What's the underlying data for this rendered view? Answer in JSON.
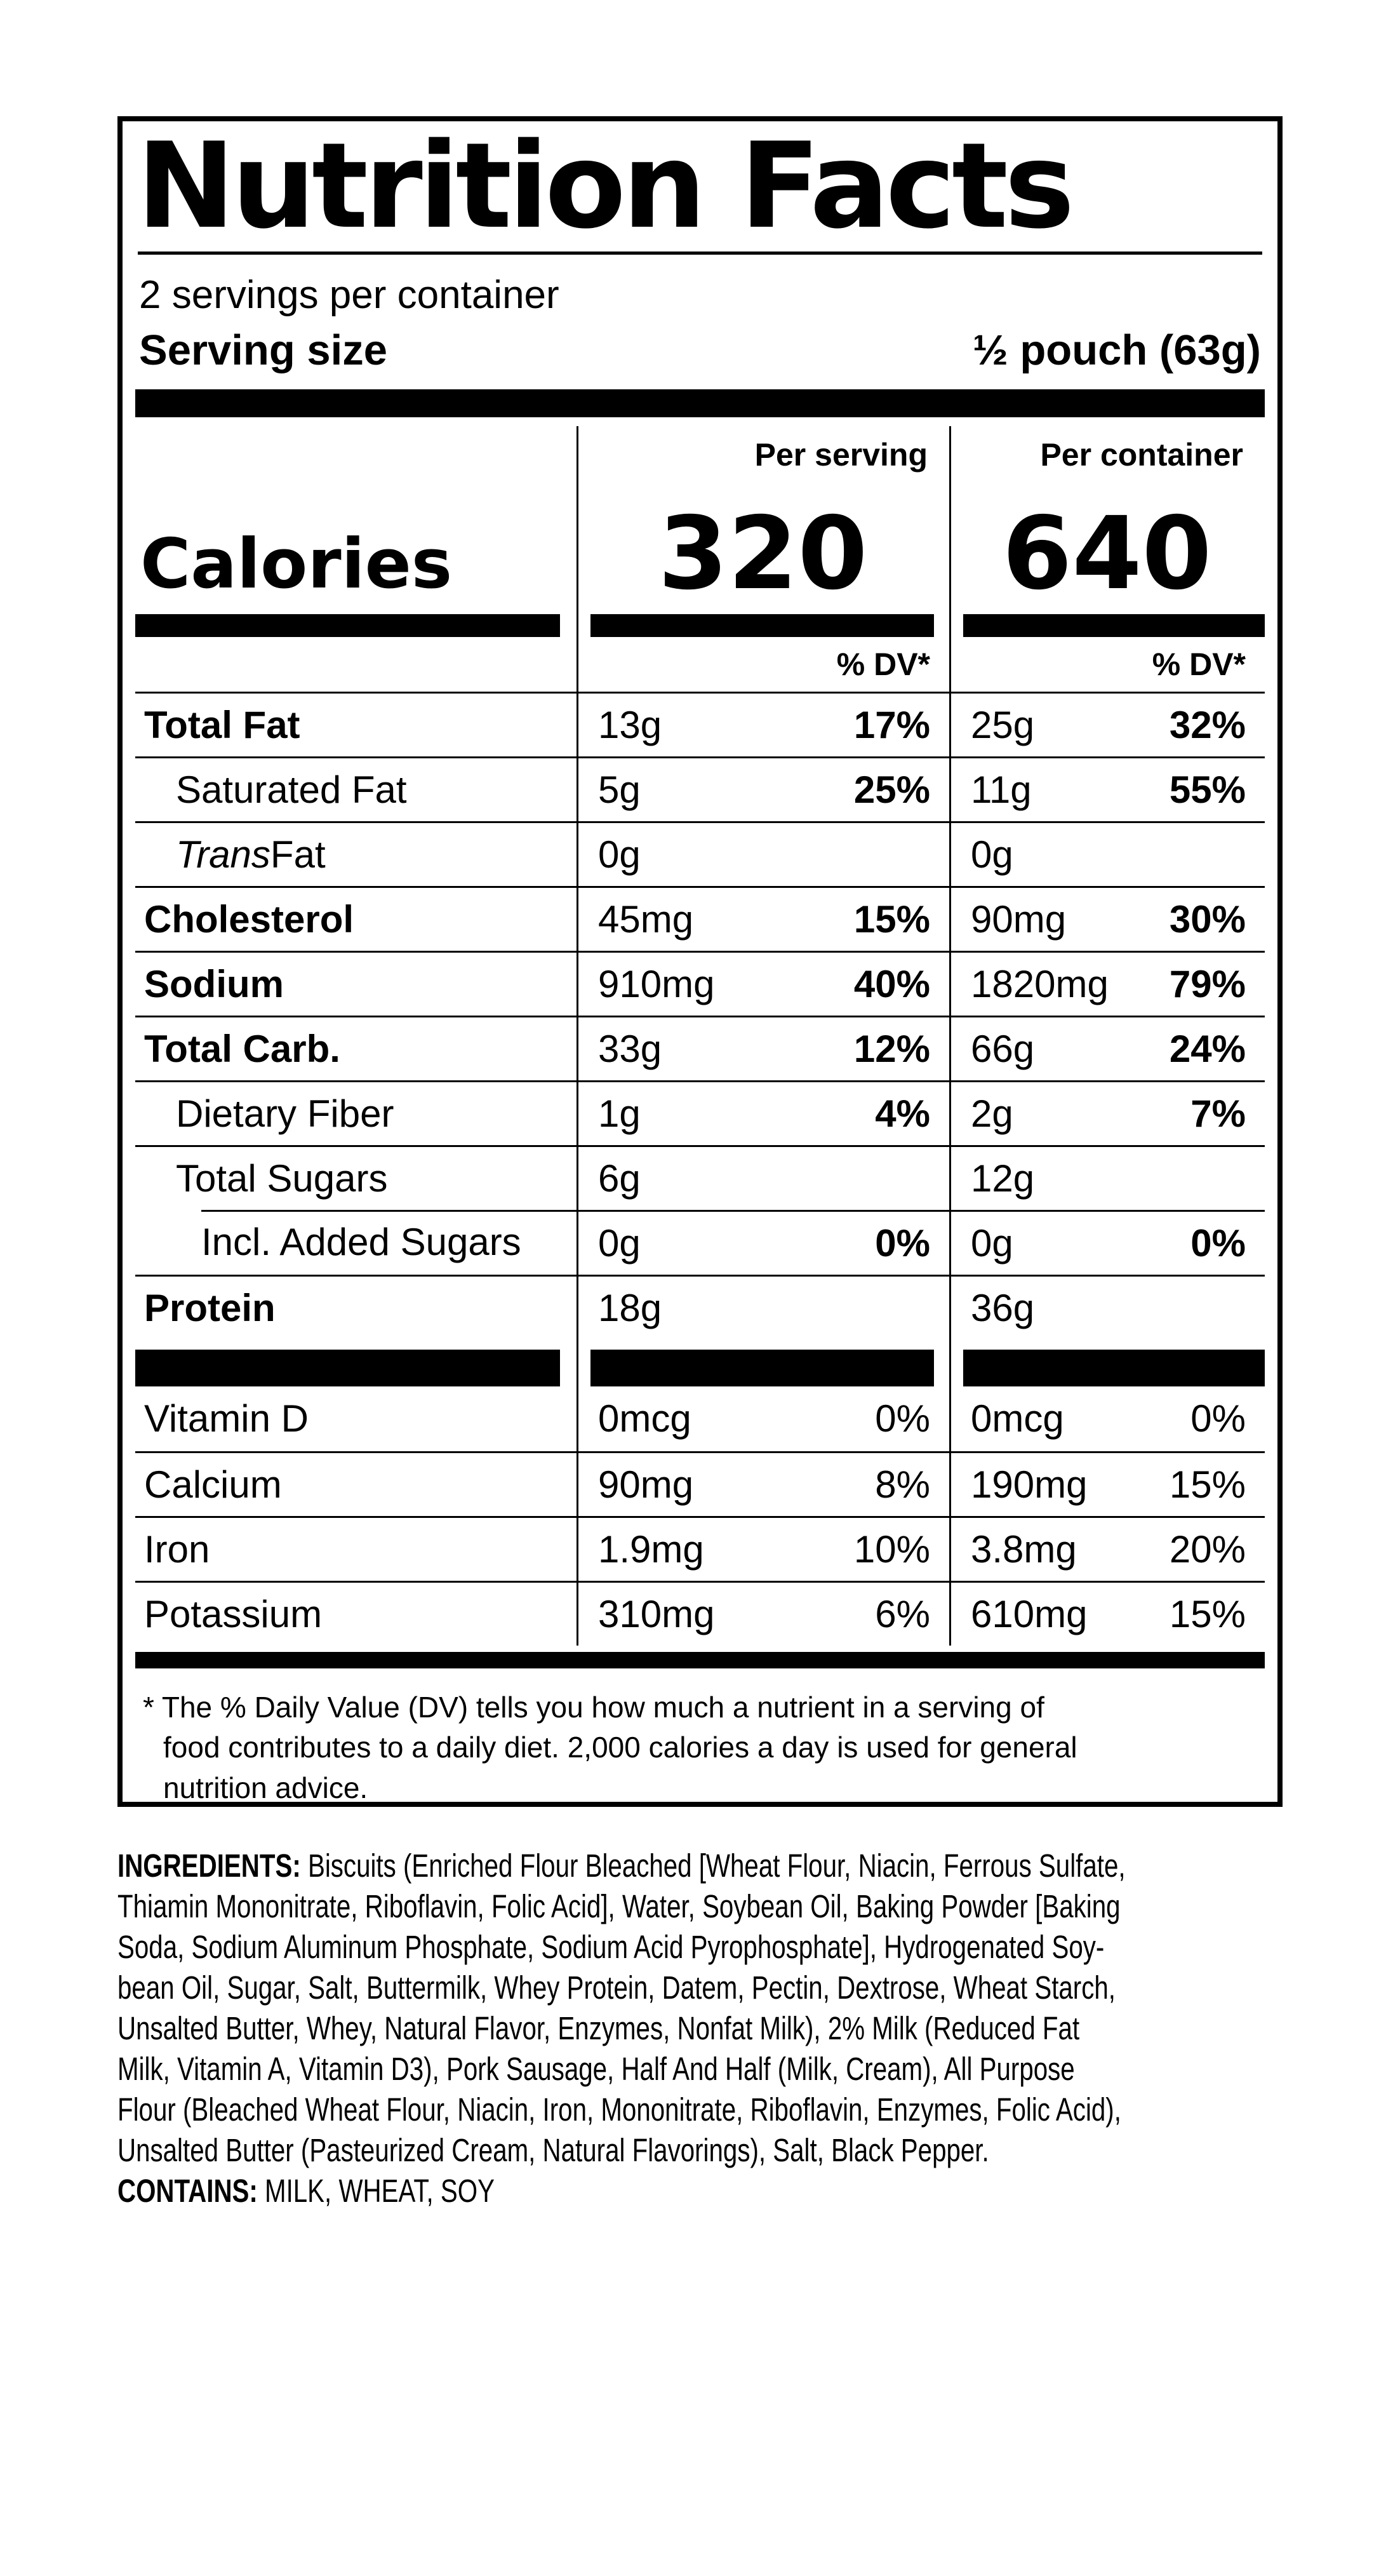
{
  "colors": {
    "ink": "#000000",
    "bg": "#ffffff"
  },
  "panel": {
    "title": "Nutrition Facts",
    "servings_per_container": "2 servings per container",
    "serving_size_label": "Serving size",
    "serving_size_value": "½ pouch (63g)",
    "columns": [
      "Per serving",
      "Per container"
    ],
    "calories": {
      "label": "Calories",
      "per_serving": "320",
      "per_container": "640"
    },
    "dv_header": "% DV*",
    "rows": [
      {
        "label": "Total Fat",
        "ps_amt": "13g",
        "ps_dv": "17%",
        "pc_amt": "25g",
        "pc_dv": "32%"
      },
      {
        "label": "Saturated Fat",
        "ps_amt": "5g",
        "ps_dv": "25%",
        "pc_amt": "11g",
        "pc_dv": "55%"
      },
      {
        "label_italic": "Trans",
        "label_rest": " Fat",
        "ps_amt": "0g",
        "pc_amt": "0g"
      },
      {
        "label": "Cholesterol",
        "ps_amt": "45mg",
        "ps_dv": "15%",
        "pc_amt": "90mg",
        "pc_dv": "30%"
      },
      {
        "label": "Sodium",
        "ps_amt": "910mg",
        "ps_dv": "40%",
        "pc_amt": "1820mg",
        "pc_dv": "79%"
      },
      {
        "label": "Total Carb.",
        "ps_amt": "33g",
        "ps_dv": "12%",
        "pc_amt": "66g",
        "pc_dv": "24%"
      },
      {
        "label": "Dietary Fiber",
        "ps_amt": "1g",
        "ps_dv": "4%",
        "pc_amt": "2g",
        "pc_dv": "7%"
      },
      {
        "label": "Total Sugars",
        "ps_amt": "6g",
        "pc_amt": "12g"
      },
      {
        "label": "Incl. Added Sugars",
        "ps_amt": "0g",
        "ps_dv": "0%",
        "pc_amt": "0g",
        "pc_dv": "0%"
      },
      {
        "label": "Protein",
        "ps_amt": "18g",
        "pc_amt": "36g"
      }
    ],
    "micros": [
      {
        "label": "Vitamin D",
        "ps_amt": "0mcg",
        "ps_dv": "0%",
        "pc_amt": "0mcg",
        "pc_dv": "0%"
      },
      {
        "label": "Calcium",
        "ps_amt": "90mg",
        "ps_dv": "8%",
        "pc_amt": "190mg",
        "pc_dv": "15%"
      },
      {
        "label": "Iron",
        "ps_amt": "1.9mg",
        "ps_dv": "10%",
        "pc_amt": "3.8mg",
        "pc_dv": "20%"
      },
      {
        "label": "Potassium",
        "ps_amt": "310mg",
        "ps_dv": "6%",
        "pc_amt": "610mg",
        "pc_dv": "15%"
      }
    ],
    "footnote": "* The % Daily Value (DV) tells you how much a nutrient in a serving of\nfood contributes to a daily diet. 2,000 calories a day is used for general\nnutrition advice."
  },
  "ingredients": {
    "label": "INGREDIENTS:",
    "body": " Biscuits (Enriched Flour Bleached [Wheat Flour, Niacin, Ferrous Sulfate,\nThiamin Mononitrate, Riboflavin, Folic Acid], Water, Soybean Oil, Baking Powder [Baking\nSoda, Sodium Aluminum Phosphate, Sodium Acid Pyrophosphate], Hydrogenated Soy-\nbean Oil, Sugar, Salt, Buttermilk, Whey Protein, Datem, Pectin, Dextrose, Wheat Starch,\nUnsalted Butter, Whey, Natural Flavor, Enzymes, Nonfat Milk), 2% Milk (Reduced Fat\nMilk, Vitamin A, Vitamin D3), Pork Sausage, Half And Half (Milk, Cream), All Purpose\nFlour (Bleached Wheat Flour, Niacin, Iron, Mononitrate, Riboflavin, Enzymes, Folic Acid),\nUnsalted Butter (Pasteurized Cream, Natural Flavorings), Salt, Black Pepper.",
    "contains_label": "CONTAINS:",
    "contains_body": " MILK, WHEAT, SOY"
  }
}
